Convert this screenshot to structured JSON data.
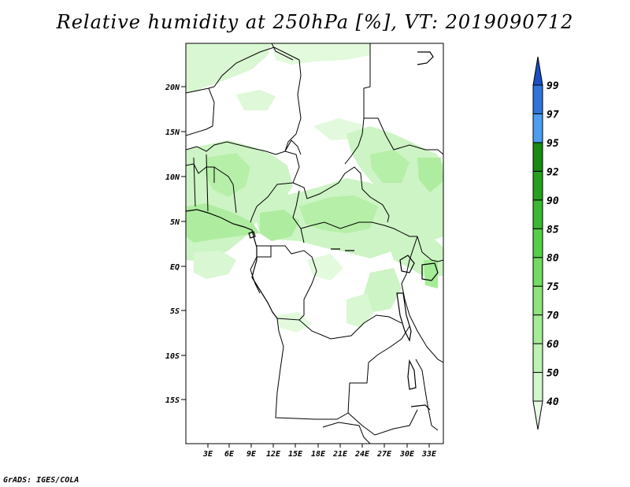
{
  "title": "Relative humidity at 250hPa [%], VT: 2019090712",
  "credit": "GrADS: IGES/COLA",
  "map": {
    "lat_labels": [
      "20N",
      "15N",
      "10N",
      "5N",
      "EQ",
      "5S",
      "10S",
      "15S"
    ],
    "lon_labels": [
      "3E",
      "6E",
      "9E",
      "12E",
      "15E",
      "18E",
      "21E",
      "24E",
      "27E",
      "30E",
      "33E"
    ]
  },
  "colorbar": {
    "levels": [
      "40",
      "50",
      "60",
      "70",
      "75",
      "80",
      "85",
      "90",
      "92",
      "95",
      "97",
      "99"
    ],
    "colors": [
      "#e9fbe6",
      "#d3f7cc",
      "#bdf2b3",
      "#a5ec97",
      "#8ee47d",
      "#72dc62",
      "#55cf48",
      "#3cb832",
      "#27a01f",
      "#178a12",
      "#4c9ef0",
      "#2f74dd",
      "#1a4fc4"
    ]
  }
}
